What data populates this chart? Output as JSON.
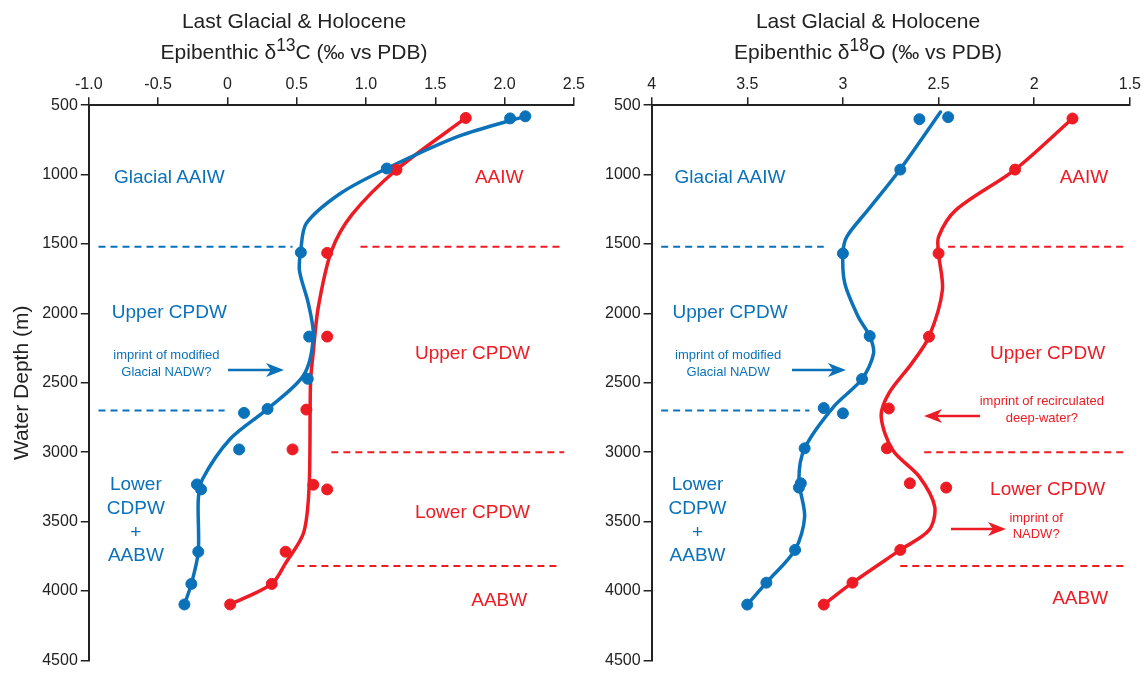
{
  "chart_data": [
    {
      "type": "scatter",
      "title": "Last Glacial & Holocene",
      "xlabel": "Epibenthic δ$^{13}$C (‰ vs PDB)",
      "ylabel": "Water Depth (m)",
      "xlim": [
        -1,
        2.5
      ],
      "xticks": [
        {
          "value": -1,
          "label": "-1.0"
        },
        -0.5,
        0,
        0.5,
        {
          "value": 1,
          "label": "1.0"
        },
        1.5,
        {
          "value": 2,
          "label": "2.0"
        },
        2.5
      ],
      "ylim": [
        4500,
        500
      ],
      "yticks": [
        500,
        1000,
        1500,
        2000,
        2500,
        3000,
        3500,
        4000,
        4500
      ],
      "grid": false,
      "legend": false,
      "series": [
        {
          "type": "scatter",
          "color": "#0b72b9",
          "x": [
            2.04,
            2.15,
            1.15,
            0.53,
            0.59,
            0.58,
            0.29,
            0.12,
            0.085,
            -0.22,
            -0.19,
            -0.21,
            -0.26,
            -0.31
          ],
          "values": [
            595,
            580,
            956,
            1561,
            2167,
            2471,
            2688,
            2717,
            2980,
            3232,
            3268,
            3717,
            3949,
            4097
          ]
        },
        {
          "type": "line",
          "color": "#0b72b9",
          "x": [
            2.15,
            1.67,
            1.15,
            0.82,
            0.57,
            0.53,
            0.52,
            0.585,
            0.62,
            0.55,
            0.29,
            0.02,
            -0.18,
            -0.21,
            -0.21,
            -0.26,
            -0.31
          ],
          "values": [
            580,
            723,
            956,
            1133,
            1351,
            1541,
            1691,
            1933,
            2167,
            2446,
            2688,
            2905,
            3195,
            3340,
            3717,
            3949,
            4097
          ]
        },
        {
          "type": "scatter",
          "color": "#ed1c24",
          "x": [
            1.72,
            1.22,
            0.72,
            0.72,
            0.57,
            0.47,
            0.62,
            0.72,
            0.42,
            0.32,
            0.02
          ],
          "values": [
            592,
            965,
            1564,
            2167,
            2693,
            2980,
            3234,
            3268,
            3717,
            3949,
            4097
          ]
        },
        {
          "type": "line",
          "color": "#ed1c24",
          "x": [
            1.72,
            1.22,
            0.9,
            0.75,
            0.655,
            0.62,
            0.6,
            0.59,
            0.55,
            0.42,
            0.32,
            0.02
          ],
          "values": [
            592,
            965,
            1287,
            1553,
            1960,
            2277,
            2494,
            3243,
            3581,
            3799,
            3949,
            4097
          ]
        }
      ],
      "ref_lines": [
        {
          "axis": "y",
          "value": 1520,
          "color": "#0b72b9",
          "line_style": "dashed"
        },
        {
          "axis": "y",
          "value": 1520,
          "color": "#ed1c24",
          "line_style": "dashed"
        },
        {
          "axis": "y",
          "value": 2700,
          "color": "#0b72b9",
          "line_style": "dashed"
        },
        {
          "axis": "y",
          "value": 3000,
          "color": "#ed1c24",
          "line_style": "dashed"
        },
        {
          "axis": "y",
          "value": 3820,
          "color": "#ed1c24",
          "line_style": "dashed"
        }
      ],
      "annotations": [
        "Glacial AAIW",
        "AAIW",
        "Upper CPDW",
        "Upper CPDW",
        "imprint of modified\nGlacial NADW?",
        "Lower\nCDPW\n+\nAABW",
        "Lower CPDW",
        "AABW"
      ]
    },
    {
      "type": "scatter",
      "title": "Last Glacial & Holocene",
      "xlabel": "Epibenthic δ$^{18}$O (‰ vs PDB)",
      "xlim": [
        4,
        1.5
      ],
      "xticks": [
        4,
        3.5,
        3,
        2.5,
        2,
        1.5
      ],
      "ylim": [
        4500,
        500
      ],
      "yticks": [
        500,
        1000,
        1500,
        2000,
        2500,
        3000,
        3500,
        4000,
        4500
      ],
      "grid": false,
      "legend": false,
      "series": [
        {
          "type": "scatter",
          "color": "#0b72b9",
          "x": [
            2.6,
            2.45,
            2.7,
            3.0,
            2.86,
            2.9,
            3.1,
            3.0,
            3.2,
            3.22,
            3.23,
            3.25,
            3.4,
            3.5
          ],
          "values": [
            601,
            586,
            964,
            1568,
            2163,
            2473,
            2682,
            2720,
            2972,
            3224,
            3255,
            3704,
            3940,
            4098
          ]
        },
        {
          "type": "line",
          "color": "#0b72b9",
          "x": [
            2.49,
            2.7,
            2.87,
            2.98,
            3.0,
            2.99,
            2.92,
            2.86,
            2.84,
            2.9,
            3.05,
            3.2,
            3.23,
            3.2,
            3.25,
            3.4,
            3.5
          ],
          "values": [
            549,
            961,
            1256,
            1448,
            1568,
            1784,
            2024,
            2163,
            2290,
            2473,
            2675,
            2972,
            3200,
            3465,
            3704,
            3940,
            4098
          ]
        },
        {
          "type": "scatter",
          "color": "#ed1c24",
          "x": [
            1.8,
            2.1,
            2.5,
            2.55,
            2.76,
            2.77,
            2.65,
            2.46,
            2.7,
            2.95,
            3.1
          ],
          "values": [
            596,
            964,
            1568,
            2168,
            2685,
            2972,
            3224,
            3255,
            3704,
            3940,
            4098
          ]
        },
        {
          "type": "line",
          "color": "#ed1c24",
          "x": [
            1.8,
            2.1,
            2.41,
            2.5,
            2.5,
            2.48,
            2.55,
            2.64,
            2.76,
            2.8,
            2.74,
            2.6,
            2.52,
            2.55,
            2.7,
            2.95,
            3.1
          ],
          "values": [
            596,
            964,
            1256,
            1448,
            1568,
            1832,
            2168,
            2360,
            2576,
            2744,
            2984,
            3178,
            3394,
            3562,
            3704,
            3940,
            4098
          ]
        }
      ],
      "ref_lines": [
        {
          "axis": "y",
          "value": 1520,
          "color": "#0b72b9",
          "line_style": "dashed"
        },
        {
          "axis": "y",
          "value": 1520,
          "color": "#ed1c24",
          "line_style": "dashed"
        },
        {
          "axis": "y",
          "value": 2700,
          "color": "#0b72b9",
          "line_style": "dashed"
        },
        {
          "axis": "y",
          "value": 3000,
          "color": "#ed1c24",
          "line_style": "dashed"
        },
        {
          "axis": "y",
          "value": 3820,
          "color": "#ed1c24",
          "line_style": "dashed"
        }
      ],
      "annotations": [
        "Glacial AAIW",
        "AAIW",
        "Upper CPDW",
        "Upper CPDW",
        "imprint of modified\nGlacial NADW",
        "imprint of recirculated\ndeep-water?",
        "Lower\nCDPW\n+\nAABW",
        "Lower CPDW",
        "imprint of\nNADW?",
        "AABW"
      ]
    }
  ]
}
